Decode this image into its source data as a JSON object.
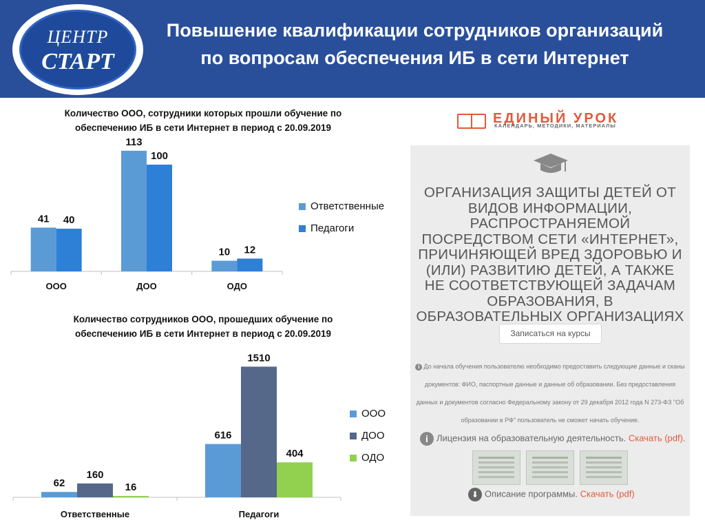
{
  "header": {
    "logo_top": "ЦЕНТР",
    "logo_bottom": "СТАРТ",
    "title_line1": "Повышение квалификации сотрудников организаций",
    "title_line2": "по вопросам обеспечения ИБ в сети Интернет"
  },
  "chart_data": [
    {
      "type": "bar",
      "title_line1": "Количество ООО, сотрудники  которых прошли обучение по",
      "title_line2": "обеспечению ИБ в сети Интернет в период с 20.09.2019",
      "categories": [
        "ООО",
        "ДОО",
        "ОДО"
      ],
      "series": [
        {
          "name": "Ответственные",
          "values": [
            41,
            113,
            10
          ],
          "color": "#5b9bd5"
        },
        {
          "name": "Педагоги",
          "values": [
            40,
            100,
            12
          ],
          "color": "#2e7fd6"
        }
      ],
      "ylim": [
        0,
        120
      ],
      "grid": false,
      "legend": "right"
    },
    {
      "type": "bar",
      "title_line1": "Количество сотрудников ООО, прошедших обучение по",
      "title_line2": "обеспечению ИБ в сети Интернет в период с 20.09.2019",
      "categories": [
        "Ответственные",
        "Педагоги"
      ],
      "series": [
        {
          "name": "ООО",
          "values": [
            62,
            616
          ],
          "color": "#5b9bd5"
        },
        {
          "name": "ДОО",
          "values": [
            160,
            1510
          ],
          "color": "#55688a"
        },
        {
          "name": "ОДО",
          "values": [
            16,
            404
          ],
          "color": "#92d050"
        }
      ],
      "ylim": [
        0,
        1600
      ],
      "grid": false,
      "legend": "right"
    }
  ],
  "right_panel": {
    "brand_name": "ЕДИНЫЙ УРОК",
    "brand_sub": "КАЛЕНДАРЬ, МЕТОДИКИ, МАТЕРИАЛЫ",
    "course_title": "ОРГАНИЗАЦИЯ ЗАЩИТЫ ДЕТЕЙ ОТ ВИДОВ ИНФОРМАЦИИ, РАСПРОСТРАНЯЕМОЙ ПОСРЕДСТВОМ СЕТИ «ИНТЕРНЕТ», ПРИЧИНЯЮЩЕЙ ВРЕД ЗДОРОВЬЮ И (ИЛИ) РАЗВИТИЮ ДЕТЕЙ, А ТАКЖЕ НЕ СООТВЕТСТВУЮЩЕЙ ЗАДАЧАМ ОБРАЗОВАНИЯ, В ОБРАЗОВАТЕЛЬНЫХ ОРГАНИЗАЦИЯХ",
    "enroll_label": "Записаться на курсы",
    "notice_text": "До начала обучения пользователю необходимо предоставить следующие данные и сканы документов: ФИО, паспортные данные и данные об образовании. Без предоставления данных и документов согласно Федеральному закону от 29 декабря 2012 года N 273-ФЗ \"Об образовании в РФ\" пользователь не сможет начать обучение.",
    "license_text": "Лицензия на образовательную деятельность.",
    "license_link": "Скачать (pdf).",
    "program_text": "Описание программы.",
    "program_link": "Скачать (pdf)",
    "icons": [
      "graduation-cap-icon",
      "info-icon",
      "download-icon",
      "book-icon"
    ],
    "brand_color": "#e2593b"
  }
}
